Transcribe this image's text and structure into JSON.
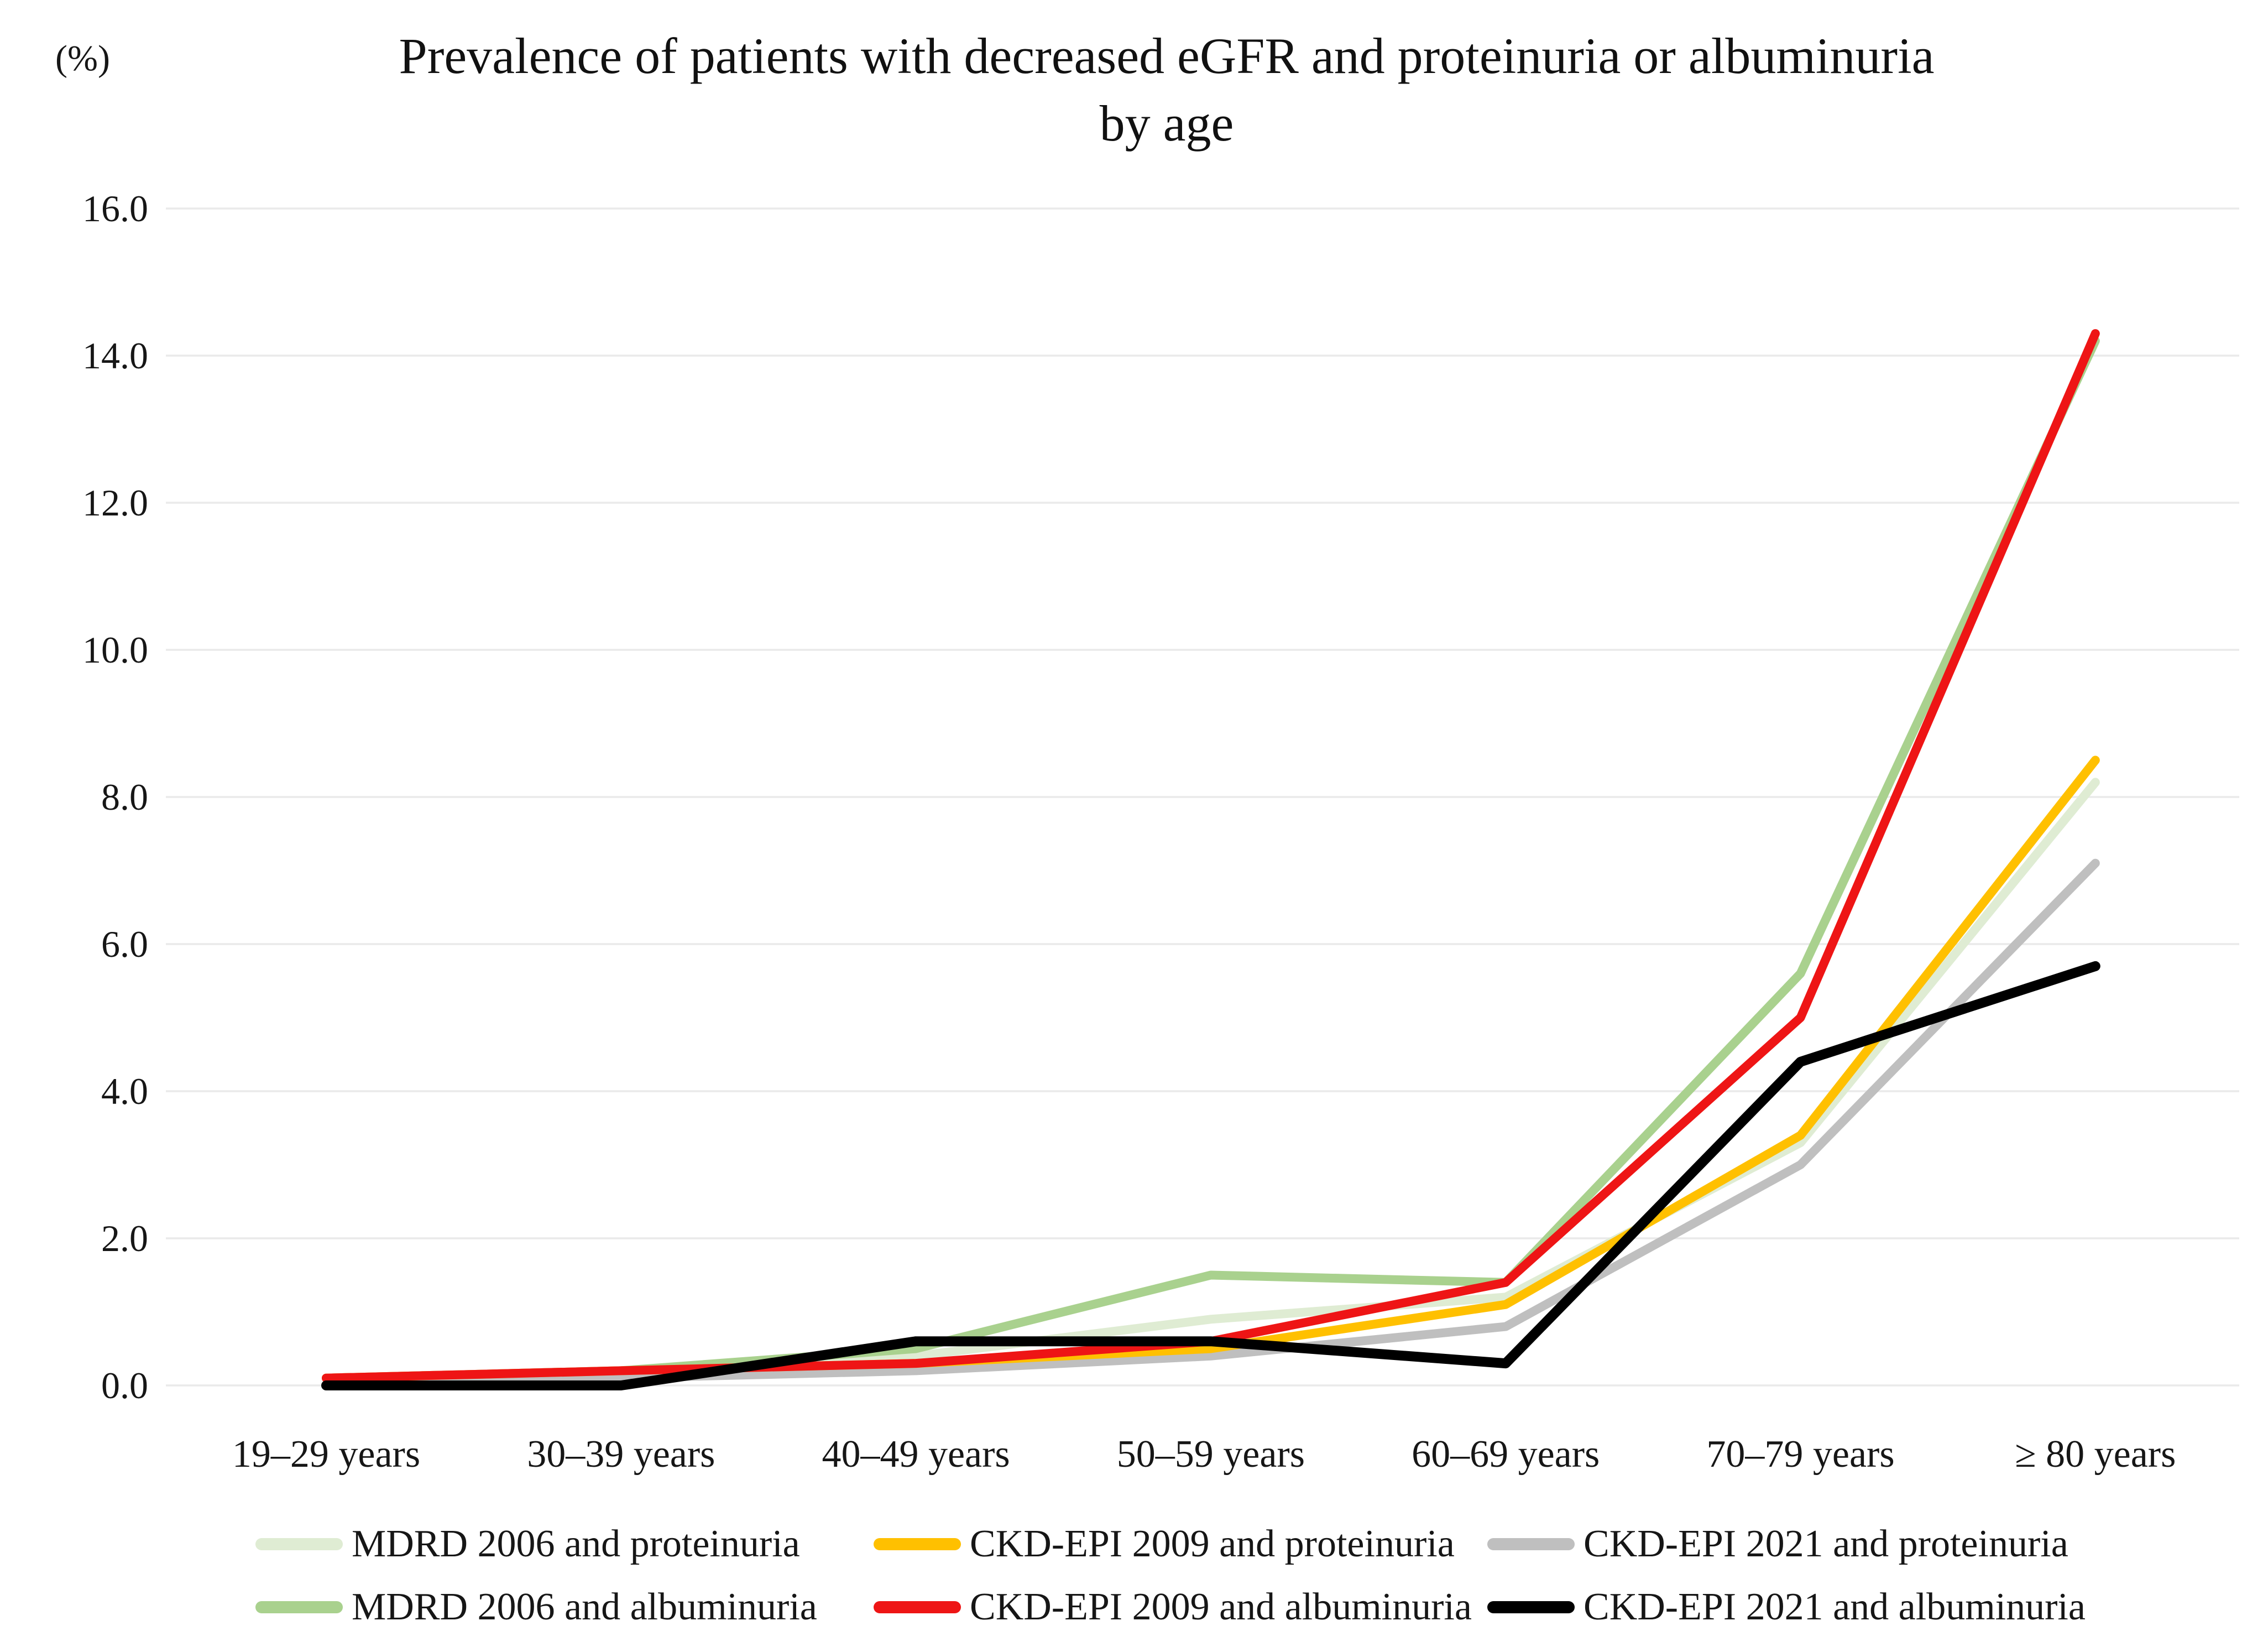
{
  "figure": {
    "percent_label": "(%)",
    "title_line1": "Prevalence of patients with decreased eGFR and proteinuria or albuminuria",
    "title_line2": "by age"
  },
  "chart_data": {
    "type": "line",
    "title": "Prevalence of patients with decreased eGFR and proteinuria or albuminuria by age",
    "ylabel": "(%)",
    "xlabel": "",
    "ylim": [
      0,
      16
    ],
    "ytick_step": 2,
    "ytick_format_decimals": 1,
    "grid": "horizontal",
    "gridline_color": "#eaeaea",
    "legend_position": "bottom",
    "categories": [
      "19–29 years",
      "30–39 years",
      "40–49 years",
      "50–59 years",
      "60–69 years",
      "70–79 years",
      "≥ 80 years"
    ],
    "series": [
      {
        "name": "MDRD 2006 and proteinuria",
        "color": "#dfecd3",
        "values": [
          0.1,
          0.2,
          0.4,
          0.9,
          1.2,
          3.3,
          8.2
        ]
      },
      {
        "name": "CKD-EPI 2009 and proteinuria",
        "color": "#ffc000",
        "values": [
          0.1,
          0.2,
          0.3,
          0.5,
          1.1,
          3.4,
          8.5
        ]
      },
      {
        "name": "CKD-EPI 2021 and proteinuria",
        "color": "#bfbfbf",
        "values": [
          0.1,
          0.1,
          0.2,
          0.4,
          0.8,
          3.0,
          7.1
        ]
      },
      {
        "name": "MDRD 2006 and albuminuria",
        "color": "#a9d18e",
        "values": [
          0.1,
          0.2,
          0.5,
          1.5,
          1.4,
          5.6,
          14.2
        ]
      },
      {
        "name": "CKD-EPI 2009 and albuminuria",
        "color": "#ee1515",
        "values": [
          0.1,
          0.2,
          0.3,
          0.6,
          1.4,
          5.0,
          14.3
        ]
      },
      {
        "name": "CKD-EPI 2021 and albuminuria",
        "color": "#000000",
        "values": [
          0.0,
          0.0,
          0.6,
          0.6,
          0.3,
          4.4,
          5.7
        ]
      }
    ],
    "draw_order": [
      0,
      3,
      2,
      1,
      4,
      5
    ],
    "legend_rows": [
      [
        0,
        1,
        2
      ],
      [
        3,
        4,
        5
      ]
    ]
  }
}
